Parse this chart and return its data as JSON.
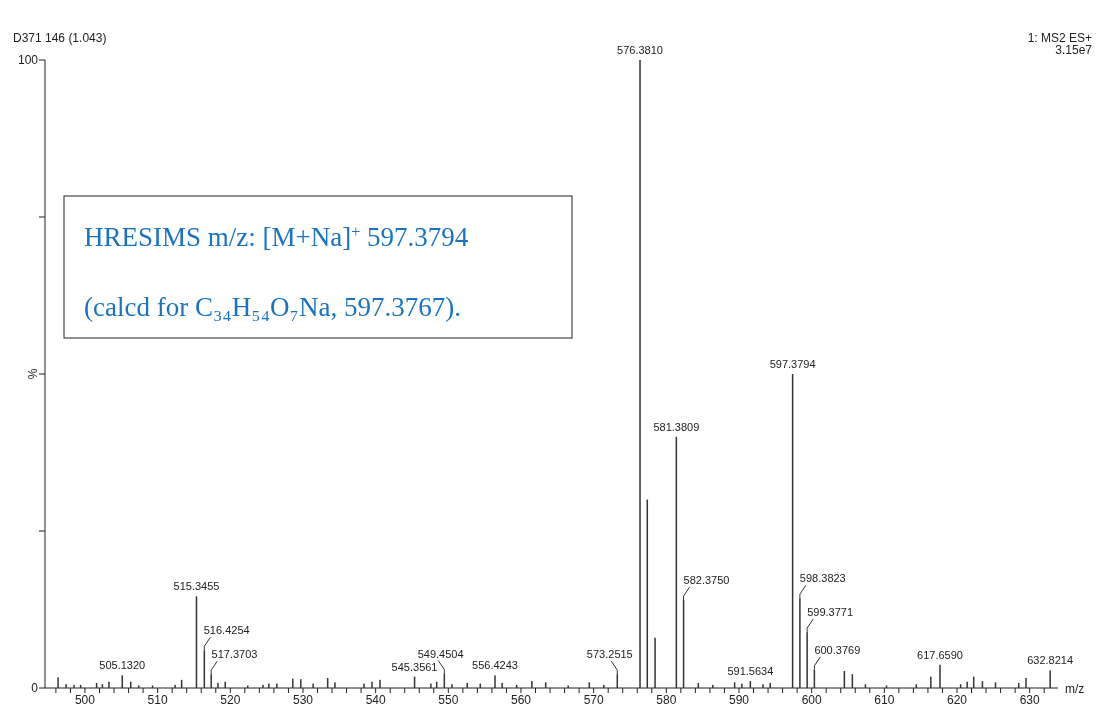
{
  "chart_data": {
    "type": "bar",
    "title": "D371 146 (1.043)",
    "xlabel": "m/z",
    "ylabel": "%",
    "color": "#333333",
    "x": [
      496.3,
      497.4,
      498.5,
      499.4,
      501.6,
      502.4,
      503.3,
      505.132,
      506.3,
      507.4,
      509.3,
      512.4,
      513.3,
      515.3455,
      516.4254,
      517.3703,
      518.3,
      519.3,
      522.4,
      524.5,
      525.3,
      526.4,
      528.6,
      529.7,
      531.4,
      533.4,
      534.4,
      538.4,
      539.5,
      540.6,
      545.3561,
      547.6,
      548.4,
      549.4504,
      550.5,
      552.6,
      554.4,
      556.4243,
      557.4,
      559.4,
      561.5,
      563.4,
      566.5,
      569.4,
      571.4,
      573.2515,
      576.381,
      577.38,
      578.45,
      581.3809,
      582.375,
      584.4,
      586.4,
      589.4,
      590.4,
      591.5634,
      593.3,
      594.3,
      597.3794,
      598.3823,
      599.3771,
      600.3769,
      604.5,
      605.6,
      607.4,
      610.3,
      614.4,
      616.4,
      617.659,
      620.5,
      621.4,
      622.3,
      623.5,
      625.3,
      628.5,
      629.5,
      632.8214
    ],
    "values": [
      1.7,
      0.6,
      0.5,
      0.5,
      0.8,
      0.6,
      1.0,
      2.0,
      1.0,
      0.4,
      0.4,
      0.5,
      1.3,
      14.6,
      6.0,
      2.2,
      0.8,
      1.0,
      0.4,
      0.5,
      0.7,
      0.7,
      1.5,
      1.4,
      0.7,
      1.6,
      0.9,
      0.7,
      1.0,
      1.3,
      1.8,
      0.7,
      1.0,
      2.3,
      0.6,
      0.8,
      0.7,
      2.0,
      0.8,
      0.5,
      1.1,
      0.9,
      0.4,
      0.9,
      0.5,
      2.2,
      100,
      30,
      8.0,
      40,
      14.0,
      0.8,
      0.5,
      0.9,
      0.7,
      1.1,
      0.6,
      0.8,
      50,
      14.3,
      8.9,
      2.9,
      2.7,
      2.2,
      0.6,
      0.4,
      0.6,
      1.8,
      3.7,
      0.6,
      1.0,
      1.8,
      1.1,
      0.9,
      0.8,
      1.6,
      2.8
    ],
    "xlim": [
      494.5,
      633.9
    ],
    "ylim": [
      0,
      100
    ],
    "xticks": [
      {
        "value": 496,
        "label": null
      },
      {
        "value": 498,
        "label": null
      },
      500,
      {
        "value": 502,
        "label": null
      },
      {
        "value": 504,
        "label": null
      },
      {
        "value": 506,
        "label": null
      },
      {
        "value": 508,
        "label": null
      },
      510,
      {
        "value": 512,
        "label": null
      },
      {
        "value": 514,
        "label": null
      },
      {
        "value": 516,
        "label": null
      },
      {
        "value": 518,
        "label": null
      },
      520,
      {
        "value": 522,
        "label": null
      },
      {
        "value": 524,
        "label": null
      },
      {
        "value": 526,
        "label": null
      },
      {
        "value": 528,
        "label": null
      },
      530,
      {
        "value": 532,
        "label": null
      },
      {
        "value": 534,
        "label": null
      },
      {
        "value": 536,
        "label": null
      },
      {
        "value": 538,
        "label": null
      },
      540,
      {
        "value": 542,
        "label": null
      },
      {
        "value": 544,
        "label": null
      },
      {
        "value": 546,
        "label": null
      },
      {
        "value": 548,
        "label": null
      },
      550,
      {
        "value": 552,
        "label": null
      },
      {
        "value": 554,
        "label": null
      },
      {
        "value": 556,
        "label": null
      },
      {
        "value": 558,
        "label": null
      },
      560,
      {
        "value": 562,
        "label": null
      },
      {
        "value": 564,
        "label": null
      },
      {
        "value": 566,
        "label": null
      },
      {
        "value": 568,
        "label": null
      },
      570,
      {
        "value": 572,
        "label": null
      },
      {
        "value": 574,
        "label": null
      },
      {
        "value": 576,
        "label": null
      },
      {
        "value": 578,
        "label": null
      },
      580,
      {
        "value": 582,
        "label": null
      },
      {
        "value": 584,
        "label": null
      },
      {
        "value": 586,
        "label": null
      },
      {
        "value": 588,
        "label": null
      },
      590,
      {
        "value": 592,
        "label": null
      },
      {
        "value": 594,
        "label": null
      },
      {
        "value": 596,
        "label": null
      },
      {
        "value": 598,
        "label": null
      },
      600,
      {
        "value": 602,
        "label": null
      },
      {
        "value": 604,
        "label": null
      },
      {
        "value": 606,
        "label": null
      },
      {
        "value": 608,
        "label": null
      },
      610,
      {
        "value": 612,
        "label": null
      },
      {
        "value": 614,
        "label": null
      },
      {
        "value": 616,
        "label": null
      },
      {
        "value": 618,
        "label": null
      },
      620,
      {
        "value": 622,
        "label": null
      },
      {
        "value": 624,
        "label": null
      },
      {
        "value": 626,
        "label": null
      },
      {
        "value": 628,
        "label": null
      },
      630,
      {
        "value": 632,
        "label": null
      }
    ],
    "yticks": [
      0,
      {
        "value": 25,
        "label": null
      },
      {
        "value": 50,
        "label": null
      },
      {
        "value": 75,
        "label": null
      },
      100
    ],
    "annotations": [
      "1: MS2 ES+",
      "3.15e7",
      "HRESIMS m/z: [M+Na]$^{+}$ 597.3794",
      "(calcd for C₃₄H₅₄O₇Na, 597.3767).",
      {
        "text": "505.1320",
        "x": 505.132,
        "y": 2.0
      },
      {
        "text": "515.3455",
        "x": 515.3455,
        "y": 14.6
      },
      {
        "text": "516.4254",
        "x": 516.4254,
        "y": 6.0
      },
      {
        "text": "517.3703",
        "x": 517.3703,
        "y": 2.2
      },
      {
        "text": "545.3561",
        "x": 545.3561,
        "y": 1.8
      },
      {
        "text": "549.4504",
        "x": 549.4504,
        "y": 2.3
      },
      {
        "text": "556.4243",
        "x": 556.4243,
        "y": 2.0
      },
      {
        "text": "573.2515",
        "x": 573.2515,
        "y": 2.2
      },
      {
        "text": "576.3810",
        "x": 576.381,
        "y": 100
      },
      {
        "text": "581.3809",
        "x": 581.3809,
        "y": 40
      },
      {
        "text": "582.3750",
        "x": 582.375,
        "y": 14.0
      },
      {
        "text": "591.5634",
        "x": 591.5634,
        "y": 1.1
      },
      {
        "text": "597.3794",
        "x": 597.3794,
        "y": 50
      },
      {
        "text": "598.3823",
        "x": 598.3823,
        "y": 14.3
      },
      {
        "text": "599.3771",
        "x": 599.3771,
        "y": 8.9
      },
      {
        "text": "600.3769",
        "x": 600.3769,
        "y": 2.9
      },
      {
        "text": "617.6590",
        "x": 617.659,
        "y": 3.7
      },
      {
        "text": "632.8214",
        "x": 632.8214,
        "y": 2.8
      }
    ]
  }
}
